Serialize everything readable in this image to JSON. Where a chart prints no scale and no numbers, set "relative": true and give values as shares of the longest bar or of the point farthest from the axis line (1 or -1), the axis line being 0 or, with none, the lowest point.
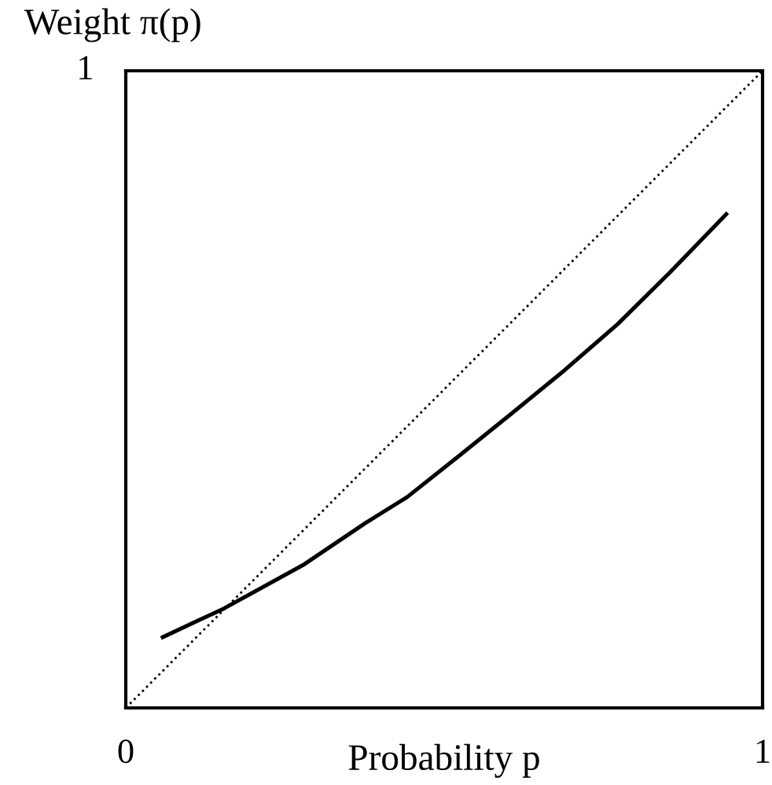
{
  "chart_data": {
    "type": "line",
    "xlabel": "Probability p",
    "ylabel": "Weight π(p)",
    "xlim": [
      0,
      1
    ],
    "relative": true,
    "annotations": [
      "1"
    ],
    "xticks": [
      0,
      1
    ],
    "legend": false,
    "marker": "none",
    "series": [
      {
        "color": "#000000",
        "line_style": "dotted",
        "x": [
          0,
          1
        ],
        "values": [
          0,
          1
        ]
      },
      {
        "color": "#000000",
        "line_style": "solid",
        "x": [
          0.058,
          0.154,
          0.278,
          0.376,
          0.442,
          0.525,
          0.607,
          0.689,
          0.772,
          0.854,
          0.943
        ],
        "values": [
          0.111,
          0.156,
          0.224,
          0.29,
          0.331,
          0.397,
          0.463,
          0.53,
          0.602,
          0.683,
          0.775
        ]
      }
    ]
  }
}
